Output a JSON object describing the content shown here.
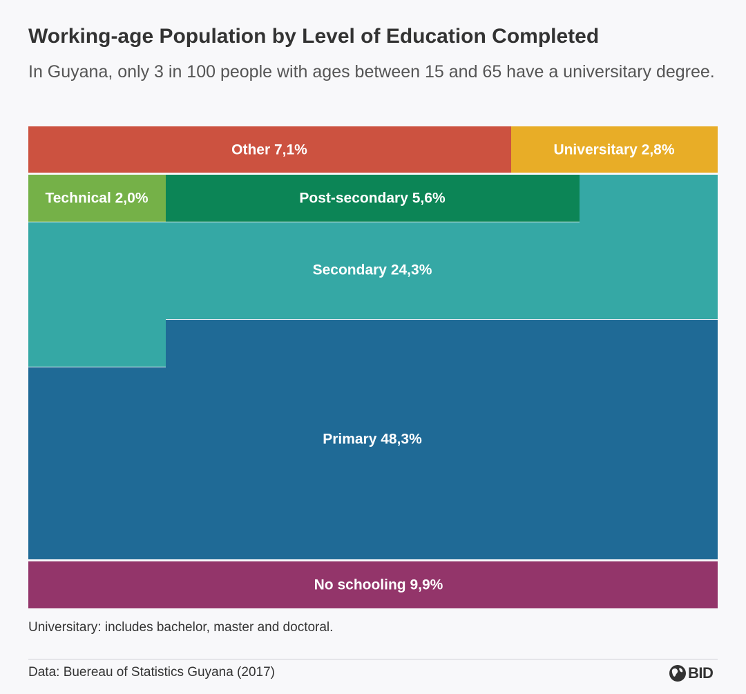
{
  "title": "Working-age Population by Level of Education Completed",
  "subtitle": "In Guyana, only 3 in 100 people with ages between 15 and 65 have a universitary degree.",
  "note": "Universitary: includes bachelor, master and doctoral.",
  "source": "Data: Buereau of Statistics Guyana (2017)",
  "logo_text": "BID",
  "logo_icon": "globe-icon",
  "chart_data": {
    "type": "treemap",
    "categories": [
      "Other",
      "Universitary",
      "Technical",
      "Post-secondary",
      "Secondary",
      "Primary",
      "No schooling"
    ],
    "values": [
      7.1,
      2.8,
      2.0,
      5.6,
      24.3,
      48.3,
      9.9
    ],
    "value_labels": [
      "7,1%",
      "2,8%",
      "2,0%",
      "5,6%",
      "24,3%",
      "48,3%",
      "9,9%"
    ],
    "colors": [
      "#cc5240",
      "#e8ad27",
      "#75b148",
      "#0c8556",
      "#35a8a5",
      "#1f6a96",
      "#93356a"
    ],
    "unit": "%"
  }
}
